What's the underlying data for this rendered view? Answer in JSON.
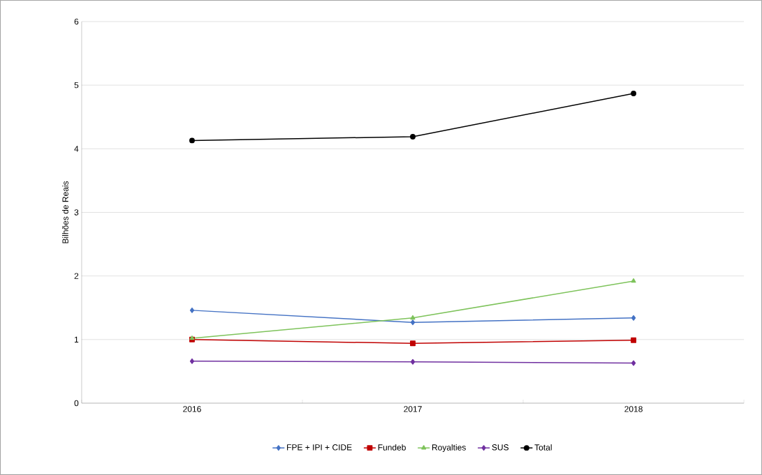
{
  "chart_data": {
    "type": "line",
    "ylabel": "Bilhões de Reais",
    "categories": [
      "2016",
      "2017",
      "2018"
    ],
    "series": [
      {
        "name": "FPE + IPI + CIDE",
        "color": "#4472c4",
        "marker": "diamond",
        "values": [
          1.46,
          1.27,
          1.34
        ]
      },
      {
        "name": "Fundeb",
        "color": "#c00000",
        "marker": "square",
        "values": [
          1.0,
          0.94,
          0.99
        ]
      },
      {
        "name": "Royalties",
        "color": "#7ec35b",
        "marker": "triangle",
        "values": [
          1.02,
          1.34,
          1.92
        ]
      },
      {
        "name": "SUS",
        "color": "#7030a0",
        "marker": "diamond",
        "values": [
          0.66,
          0.65,
          0.63
        ]
      },
      {
        "name": "Total",
        "color": "#000000",
        "marker": "circle",
        "values": [
          4.13,
          4.19,
          4.87
        ]
      }
    ],
    "ylim": [
      0,
      6
    ],
    "yticks": [
      0,
      1,
      2,
      3,
      4,
      5,
      6
    ],
    "grid": "y",
    "legend": "bottom"
  }
}
